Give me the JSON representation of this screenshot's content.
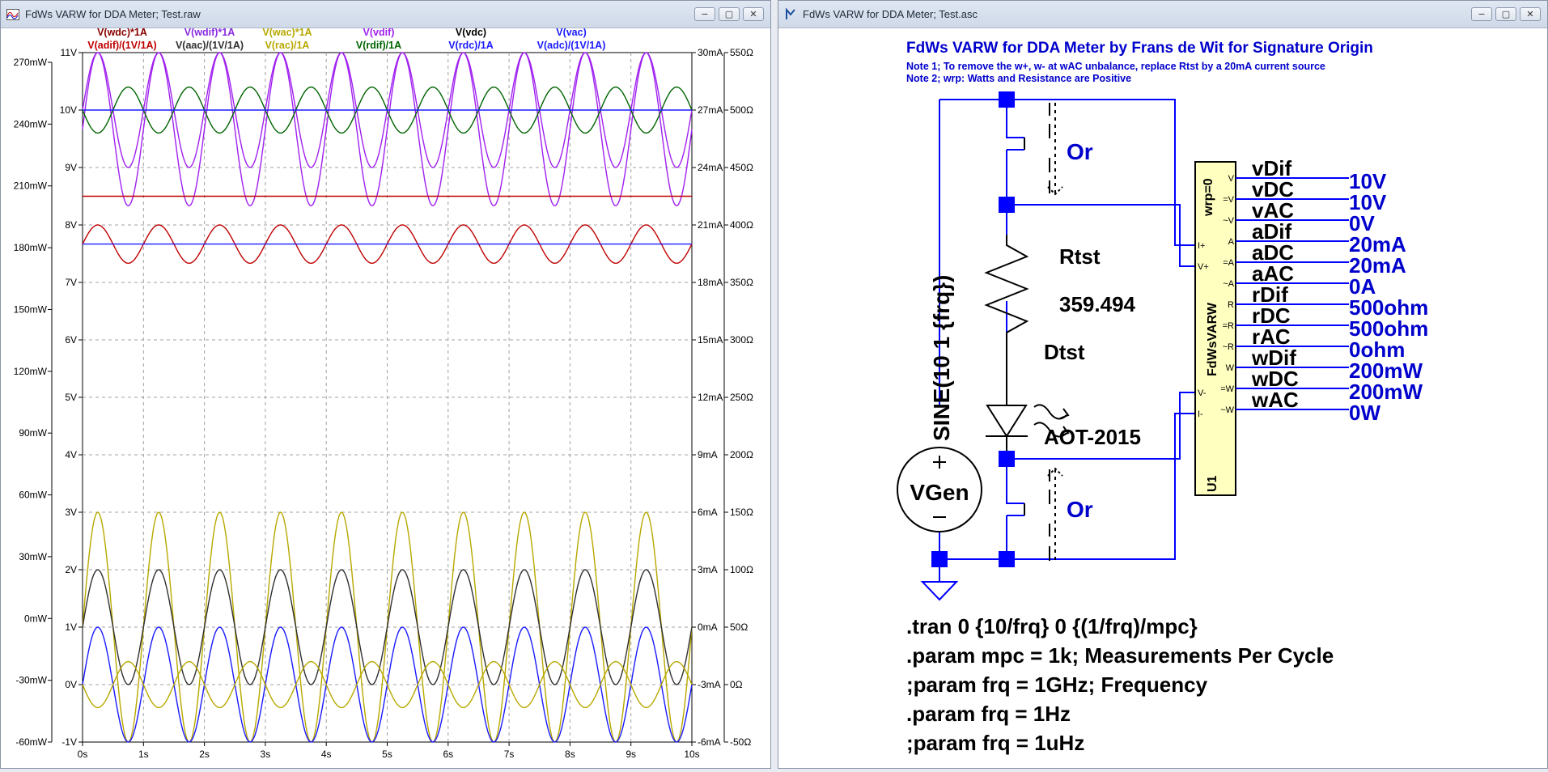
{
  "windows": {
    "waveform": {
      "title": "FdWs VARW for DDA Meter; Test.raw"
    },
    "schematic": {
      "title": "FdWs VARW for DDA Meter; Test.asc"
    }
  },
  "controls": {
    "minimize": "−",
    "restore": "▢",
    "close": "✕"
  },
  "plot": {
    "trace_labels": [
      {
        "text": "V(wdc)*1A",
        "color": "#8a0000"
      },
      {
        "text": "V(adif)/(1V/1A)",
        "color": "#c00000"
      },
      {
        "text": "V(wdif)*1A",
        "color": "#8a2be2"
      },
      {
        "text": "V(aac)/(1V/1A)",
        "color": "#303030"
      },
      {
        "text": "V(wac)*1A",
        "color": "#b8a800"
      },
      {
        "text": "V(rac)/1A",
        "color": "#b8a800"
      },
      {
        "text": "V(vdif)",
        "color": "#a020f0"
      },
      {
        "text": "V(rdif)/1A",
        "color": "#006400"
      },
      {
        "text": "V(vdc)",
        "color": "#000000"
      },
      {
        "text": "V(rdc)/1A",
        "color": "#1a1aff"
      },
      {
        "text": "V(vac)",
        "color": "#1a1aff"
      },
      {
        "text": "V(adc)/(1V/1A)",
        "color": "#1a1aff"
      }
    ],
    "axis_far_left": [
      "270mW",
      "240mW",
      "210mW",
      "180mW",
      "150mW",
      "120mW",
      "90mW",
      "60mW",
      "30mW",
      "0mW",
      "-30mW",
      "-60mW"
    ],
    "axis_left": [
      "11V",
      "10V",
      "9V",
      "8V",
      "7V",
      "6V",
      "5V",
      "4V",
      "3V",
      "2V",
      "1V",
      "0V",
      "-1V"
    ],
    "axis_right": [
      "30mA",
      "27mA",
      "24mA",
      "21mA",
      "18mA",
      "15mA",
      "12mA",
      "9mA",
      "6mA",
      "3mA",
      "0mA",
      "-3mA",
      "-6mA"
    ],
    "axis_far_right": [
      "550Ω",
      "500Ω",
      "450Ω",
      "400Ω",
      "350Ω",
      "300Ω",
      "250Ω",
      "200Ω",
      "150Ω",
      "100Ω",
      "50Ω",
      "0Ω",
      "-50Ω"
    ],
    "axis_x": [
      "0s",
      "1s",
      "2s",
      "3s",
      "4s",
      "5s",
      "6s",
      "7s",
      "8s",
      "9s",
      "10s"
    ]
  },
  "chart_data": {
    "type": "line",
    "xlabel": "",
    "ylabel": "",
    "xlim": [
      0,
      10
    ],
    "ylim": [
      -1,
      11
    ],
    "grid": true,
    "series": [
      {
        "name": "V(wdif)*1A",
        "color": "#a020f0",
        "kind": "sine",
        "offset": 9.667,
        "amp": 1.333,
        "freq": 1,
        "phase": 0
      },
      {
        "name": "V(vdif)",
        "color": "#a020f0",
        "kind": "sine",
        "offset": 10,
        "amp": 1,
        "freq": 1,
        "phase": 0
      },
      {
        "name": "V(rdif)/1A",
        "color": "#006400",
        "kind": "sine",
        "offset": 10,
        "amp": 0.4,
        "freq": 1,
        "phase": 3.1416
      },
      {
        "name": "V(vdc)",
        "color": "#1a1aff",
        "kind": "const",
        "value": 10
      },
      {
        "name": "V(adif)/(1V/1A)",
        "color": "#c00000",
        "kind": "sine",
        "offset": 7.667,
        "amp": 0.333,
        "freq": 1,
        "phase": 0
      },
      {
        "name": "V(wdc)*1A",
        "color": "#c00000",
        "kind": "const",
        "value": 8.5
      },
      {
        "name": "V(adc)/(1V/1A)",
        "color": "#1a1aff",
        "kind": "const",
        "value": 7.667
      },
      {
        "name": "V(wac)*1A",
        "color": "#b8a800",
        "kind": "sine",
        "offset": 1,
        "amp": 2,
        "freq": 1,
        "phase": 0
      },
      {
        "name": "V(aac)/(1V/1A)",
        "color": "#303030",
        "kind": "sine",
        "offset": 1,
        "amp": 1,
        "freq": 1,
        "phase": 0
      },
      {
        "name": "V(vac)",
        "color": "#1a1aff",
        "kind": "sine",
        "offset": 0,
        "amp": 1,
        "freq": 1,
        "phase": 0
      },
      {
        "name": "V(rac)/1A",
        "color": "#b8a800",
        "kind": "sine",
        "offset": 0,
        "amp": 0.4,
        "freq": 1,
        "phase": 3.1416
      }
    ]
  },
  "schematic": {
    "title": "FdWs VARW for DDA Meter by Frans de Wit for Signature Origin",
    "note1": "Note 1; To remove the w+, w- at wAC unbalance, replace Rtst by a 20mA current source",
    "note2": "Note 2; wrp: Watts and Resistance are Positive",
    "source_value": "SINE(10 1 {frq})",
    "source_name": "VGen",
    "resistor_name": "Rtst",
    "resistor_value": "359.494",
    "diode_name": "Dtst",
    "diode_value": "AOT-2015",
    "or_label": "Or",
    "block_name": "FdWsVARW",
    "block_param": "wrp=0",
    "block_ref": "U1",
    "pins_left": [
      "I+",
      "V+",
      "V-",
      "I-"
    ],
    "pins_right": [
      "V",
      "=V",
      "~V",
      "A",
      "=A",
      "~A",
      "R",
      "=R",
      "~R",
      "W",
      "=W",
      "~W"
    ],
    "meas": [
      {
        "name": "vDif",
        "value": "10V"
      },
      {
        "name": "vDC",
        "value": "10V"
      },
      {
        "name": "vAC",
        "value": "0V"
      },
      {
        "name": "aDif",
        "value": "20mA"
      },
      {
        "name": "aDC",
        "value": "20mA"
      },
      {
        "name": "aAC",
        "value": "0A"
      },
      {
        "name": "rDif",
        "value": "500ohm"
      },
      {
        "name": "rDC",
        "value": "500ohm"
      },
      {
        "name": "rAC",
        "value": "0ohm"
      },
      {
        "name": "wDif",
        "value": "200mW"
      },
      {
        "name": "wDC",
        "value": "200mW"
      },
      {
        "name": "wAC",
        "value": "0W"
      }
    ],
    "directives": [
      ".tran 0 {10/frq} 0 {(1/frq)/mpc}",
      ".param mpc = 1k; Measurements Per Cycle",
      ";param frq = 1GHz; Frequency",
      ".param frq = 1Hz",
      ";param frq = 1uHz"
    ]
  },
  "colors": {
    "wire": "#0000ff",
    "component": "#000000",
    "text_blue": "#0000cc",
    "block_fill": "#ffffc0"
  }
}
